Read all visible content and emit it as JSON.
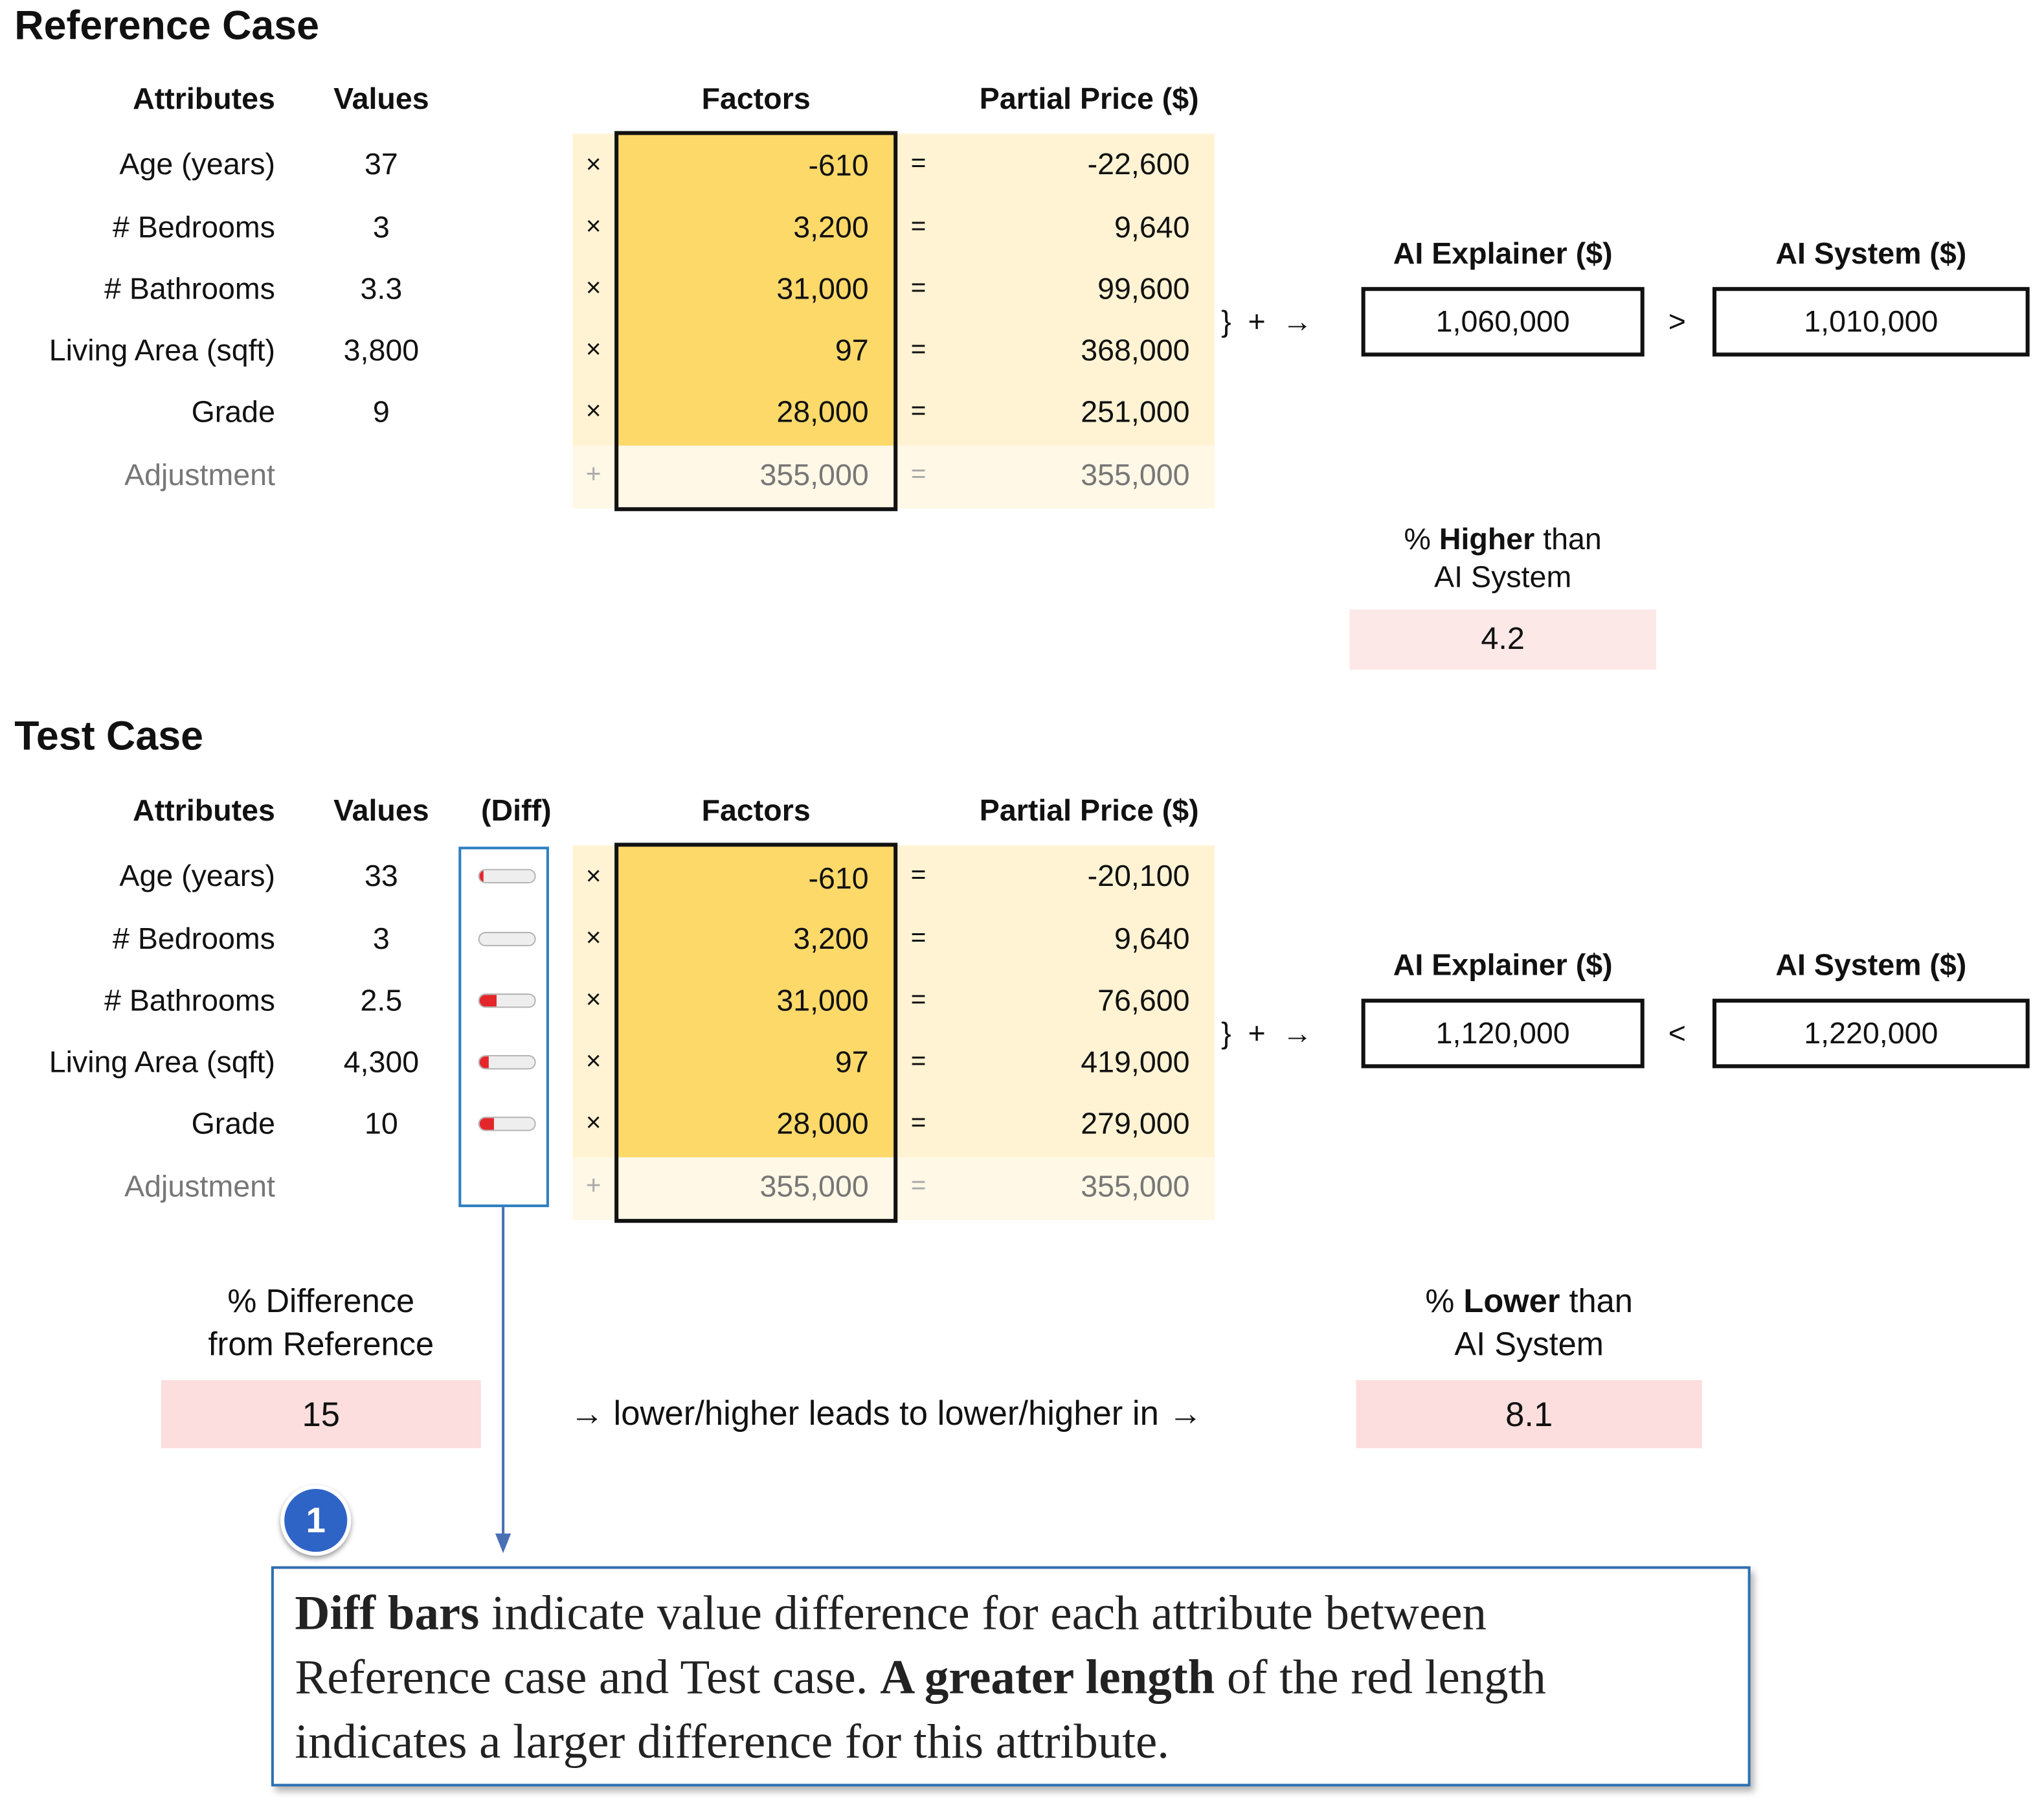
{
  "reference": {
    "title": "Reference Case",
    "headers": {
      "attributes": "Attributes",
      "values": "Values",
      "factors": "Factors",
      "partial": "Partial Price ($)"
    },
    "rows": [
      {
        "attribute": "Age (years)",
        "value": "37",
        "op": "×",
        "factor": "-610",
        "eq": "=",
        "partial": "-22,600"
      },
      {
        "attribute": "# Bedrooms",
        "value": "3",
        "op": "×",
        "factor": "3,200",
        "eq": "=",
        "partial": "9,640"
      },
      {
        "attribute": "# Bathrooms",
        "value": "3.3",
        "op": "×",
        "factor": "31,000",
        "eq": "=",
        "partial": "99,600"
      },
      {
        "attribute": "Living Area (sqft)",
        "value": "3,800",
        "op": "×",
        "factor": "97",
        "eq": "=",
        "partial": "368,000"
      },
      {
        "attribute": "Grade",
        "value": "9",
        "op": "×",
        "factor": "28,000",
        "eq": "=",
        "partial": "251,000"
      }
    ],
    "adjustment": {
      "label": "Adjustment",
      "op": "+",
      "factor": "355,000",
      "eq": "=",
      "partial": "355,000"
    },
    "sum_symbols": "}  +  →",
    "explainer": {
      "label": "AI Explainer ($)",
      "value": "1,060,000"
    },
    "comparison": ">",
    "system": {
      "label": "AI System ($)",
      "value": "1,010,000"
    },
    "pct": {
      "prefix": "% ",
      "bold": "Higher",
      "suffix": " than",
      "line2": "AI System",
      "value": "4.2"
    }
  },
  "test": {
    "title": "Test Case",
    "headers": {
      "attributes": "Attributes",
      "values": "Values",
      "diff": "(Diff)",
      "factors": "Factors",
      "partial": "Partial Price ($)"
    },
    "rows": [
      {
        "attribute": "Age (years)",
        "value": "33",
        "diff": 0.06,
        "op": "×",
        "factor": "-610",
        "eq": "=",
        "partial": "-20,100"
      },
      {
        "attribute": "# Bedrooms",
        "value": "3",
        "diff": 0,
        "op": "×",
        "factor": "3,200",
        "eq": "=",
        "partial": "9,640"
      },
      {
        "attribute": "# Bathrooms",
        "value": "2.5",
        "diff": 0.32,
        "op": "×",
        "factor": "31,000",
        "eq": "=",
        "partial": "76,600"
      },
      {
        "attribute": "Living Area (sqft)",
        "value": "4,300",
        "diff": 0.17,
        "op": "×",
        "factor": "97",
        "eq": "=",
        "partial": "419,000"
      },
      {
        "attribute": "Grade",
        "value": "10",
        "diff": 0.26,
        "op": "×",
        "factor": "28,000",
        "eq": "=",
        "partial": "279,000"
      }
    ],
    "adjustment": {
      "label": "Adjustment",
      "op": "+",
      "factor": "355,000",
      "eq": "=",
      "partial": "355,000"
    },
    "sum_symbols": "}  +  →",
    "explainer": {
      "label": "AI Explainer ($)",
      "value": "1,120,000"
    },
    "comparison": "<",
    "system": {
      "label": "AI System ($)",
      "value": "1,220,000"
    },
    "diff_pct": {
      "line1": "% Difference",
      "line2": "from Reference",
      "value": "15"
    },
    "relation_text": "→ lower/higher leads to lower/higher in →",
    "pct": {
      "prefix": "% ",
      "bold": "Lower",
      "suffix": " than",
      "line2": "AI System",
      "value": "8.1"
    }
  },
  "callout": {
    "number": "1",
    "bold1": "Diff bars",
    "text1": " indicate value difference for each attribute between",
    "text2": "Reference case and Test case. ",
    "bold2": "A greater length",
    "text3": " of the red length",
    "text4": "indicates a larger difference for this attribute."
  },
  "colors": {
    "factor_fill": "#fdd96a",
    "partial_fill": "#fff3d3",
    "highlight_border": "#2d7fc1",
    "diff_bar_red": "#e4262b",
    "pink_box": "#fde8e8",
    "badge_blue": "#2f64c7"
  }
}
